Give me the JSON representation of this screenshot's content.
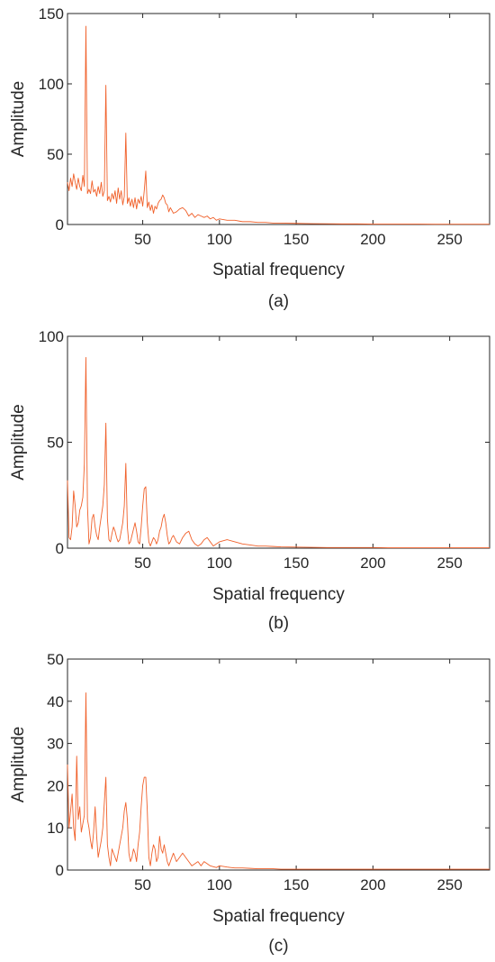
{
  "figure": {
    "line_color": "#f0602a",
    "axis_color": "#262626"
  },
  "chart_data": [
    {
      "type": "line",
      "panel": "a",
      "caption": "(a)",
      "xlabel": "Spatial frequency",
      "ylabel": "Amplitude",
      "xlim": [
        1,
        276
      ],
      "ylim": [
        0,
        150
      ],
      "xticks": [
        50,
        100,
        150,
        200,
        250
      ],
      "yticks": [
        0,
        50,
        100,
        150
      ],
      "grid": false,
      "series": [
        {
          "color": "#f0602a",
          "x": [
            1,
            2,
            3,
            4,
            5,
            6,
            7,
            8,
            9,
            10,
            11,
            12,
            13,
            14,
            15,
            16,
            17,
            18,
            19,
            20,
            21,
            22,
            23,
            24,
            25,
            26,
            27,
            28,
            29,
            30,
            31,
            32,
            33,
            34,
            35,
            36,
            37,
            38,
            39,
            40,
            41,
            42,
            43,
            44,
            45,
            46,
            47,
            48,
            49,
            50,
            51,
            52,
            53,
            54,
            55,
            56,
            57,
            58,
            59,
            60,
            61,
            62,
            63,
            64,
            65,
            66,
            67,
            68,
            69,
            70,
            72,
            74,
            76,
            78,
            80,
            82,
            84,
            86,
            88,
            90,
            92,
            94,
            96,
            98,
            100,
            105,
            110,
            115,
            120,
            125,
            130,
            135,
            140,
            150,
            160,
            170,
            180,
            190,
            200,
            210,
            220,
            230,
            240,
            250,
            260,
            270,
            276
          ],
          "y": [
            30,
            24,
            33,
            27,
            36,
            30,
            25,
            33,
            27,
            24,
            35,
            27,
            141,
            22,
            25,
            22,
            31,
            23,
            25,
            20,
            27,
            22,
            30,
            20,
            24,
            99,
            17,
            20,
            16,
            22,
            18,
            24,
            15,
            26,
            18,
            24,
            14,
            20,
            65,
            15,
            19,
            13,
            18,
            12,
            19,
            11,
            18,
            15,
            20,
            13,
            24,
            38,
            12,
            16,
            10,
            14,
            8,
            13,
            11,
            15,
            17,
            18,
            21,
            19,
            15,
            14,
            9,
            12,
            10,
            8,
            9,
            11,
            12,
            10,
            6,
            8,
            5,
            7,
            6,
            5,
            6,
            4,
            5,
            3,
            4,
            3,
            3,
            2,
            2,
            1.5,
            1.5,
            1,
            1,
            0.8,
            0.6,
            0.5,
            0.4,
            0.4,
            0.3,
            0.3,
            0.3,
            0.3,
            0.2,
            0.2,
            0.2,
            0.2,
            0.2
          ]
        }
      ]
    },
    {
      "type": "line",
      "panel": "b",
      "caption": "(b)",
      "xlabel": "Spatial frequency",
      "ylabel": "Amplitude",
      "xlim": [
        1,
        276
      ],
      "ylim": [
        0,
        100
      ],
      "xticks": [
        50,
        100,
        150,
        200,
        250
      ],
      "yticks": [
        0,
        50,
        100
      ],
      "grid": false,
      "series": [
        {
          "color": "#f0602a",
          "x": [
            1,
            2,
            3,
            4,
            5,
            6,
            7,
            8,
            9,
            10,
            11,
            12,
            13,
            14,
            15,
            16,
            17,
            18,
            19,
            20,
            21,
            22,
            23,
            24,
            25,
            26,
            27,
            28,
            29,
            30,
            31,
            32,
            33,
            34,
            35,
            36,
            37,
            38,
            39,
            40,
            41,
            42,
            43,
            44,
            45,
            46,
            47,
            48,
            49,
            50,
            51,
            52,
            53,
            54,
            55,
            56,
            57,
            58,
            59,
            60,
            61,
            62,
            63,
            64,
            65,
            66,
            67,
            68,
            69,
            70,
            72,
            74,
            76,
            78,
            80,
            82,
            84,
            86,
            88,
            90,
            92,
            94,
            96,
            98,
            100,
            105,
            110,
            115,
            120,
            125,
            130,
            135,
            140,
            150,
            160,
            170,
            180,
            190,
            200,
            210,
            220,
            230,
            240,
            250,
            260,
            270,
            276
          ],
          "y": [
            32,
            5,
            4,
            10,
            27,
            20,
            10,
            12,
            18,
            20,
            24,
            40,
            90,
            20,
            2,
            5,
            14,
            16,
            10,
            6,
            4,
            10,
            15,
            20,
            30,
            59,
            14,
            4,
            3,
            7,
            10,
            8,
            5,
            3,
            4,
            8,
            12,
            20,
            40,
            10,
            2,
            3,
            6,
            9,
            12,
            8,
            3,
            2,
            10,
            20,
            28,
            29,
            12,
            3,
            1,
            3,
            5,
            4,
            2,
            4,
            8,
            10,
            14,
            16,
            12,
            6,
            2,
            3,
            5,
            6,
            3,
            2,
            5,
            7,
            8,
            4,
            2,
            1,
            2,
            4,
            5,
            3,
            1,
            2,
            3,
            4,
            3,
            2,
            1.5,
            1,
            1,
            0.8,
            0.6,
            0.5,
            0.4,
            0.3,
            0.3,
            0.3,
            0.3,
            0.2,
            0.2,
            0.2,
            0.2,
            0.2,
            0.2,
            0.2,
            0.2
          ]
        }
      ]
    },
    {
      "type": "line",
      "panel": "c",
      "caption": "(c)",
      "xlabel": "Spatial frequency",
      "ylabel": "Amplitude",
      "xlim": [
        1,
        276
      ],
      "ylim": [
        0,
        50
      ],
      "xticks": [
        50,
        100,
        150,
        200,
        250
      ],
      "yticks": [
        0,
        10,
        20,
        30,
        40,
        50
      ],
      "grid": false,
      "series": [
        {
          "color": "#f0602a",
          "x": [
            1,
            2,
            3,
            4,
            5,
            6,
            7,
            8,
            9,
            10,
            11,
            12,
            13,
            14,
            15,
            16,
            17,
            18,
            19,
            20,
            21,
            22,
            23,
            24,
            25,
            26,
            27,
            28,
            29,
            30,
            31,
            32,
            33,
            34,
            35,
            36,
            37,
            38,
            39,
            40,
            41,
            42,
            43,
            44,
            45,
            46,
            47,
            48,
            49,
            50,
            51,
            52,
            53,
            54,
            55,
            56,
            57,
            58,
            59,
            60,
            61,
            62,
            63,
            64,
            65,
            66,
            67,
            68,
            69,
            70,
            72,
            74,
            76,
            78,
            80,
            82,
            84,
            86,
            88,
            90,
            92,
            94,
            96,
            98,
            100,
            105,
            110,
            115,
            120,
            125,
            130,
            135,
            140,
            150,
            160,
            170,
            180,
            190,
            200,
            210,
            220,
            230,
            240,
            250,
            260,
            270,
            276
          ],
          "y": [
            25,
            10,
            14,
            18,
            10,
            7,
            27,
            12,
            15,
            9,
            11,
            13,
            42,
            12,
            10,
            7,
            5,
            9,
            15,
            8,
            3,
            5,
            7,
            10,
            16,
            22,
            6,
            3,
            1,
            5,
            4,
            3,
            2,
            4,
            6,
            8,
            10,
            14,
            16,
            12,
            4,
            2,
            3,
            5,
            4,
            2,
            6,
            9,
            15,
            20,
            22,
            22,
            14,
            3,
            1,
            4,
            6,
            5,
            2,
            3,
            8,
            5,
            4,
            6,
            4,
            2,
            1,
            2,
            3,
            4,
            2,
            3,
            4,
            3,
            2,
            1,
            1.5,
            2,
            1,
            2,
            1.5,
            1,
            0.8,
            0.6,
            1,
            0.7,
            0.5,
            0.5,
            0.4,
            0.3,
            0.3,
            0.3,
            0.2,
            0.2,
            0.2,
            0.2,
            0.2,
            0.2,
            0.2,
            0.2,
            0.2,
            0.2,
            0.2,
            0.2,
            0.2,
            0.2,
            0.2
          ]
        }
      ]
    }
  ]
}
